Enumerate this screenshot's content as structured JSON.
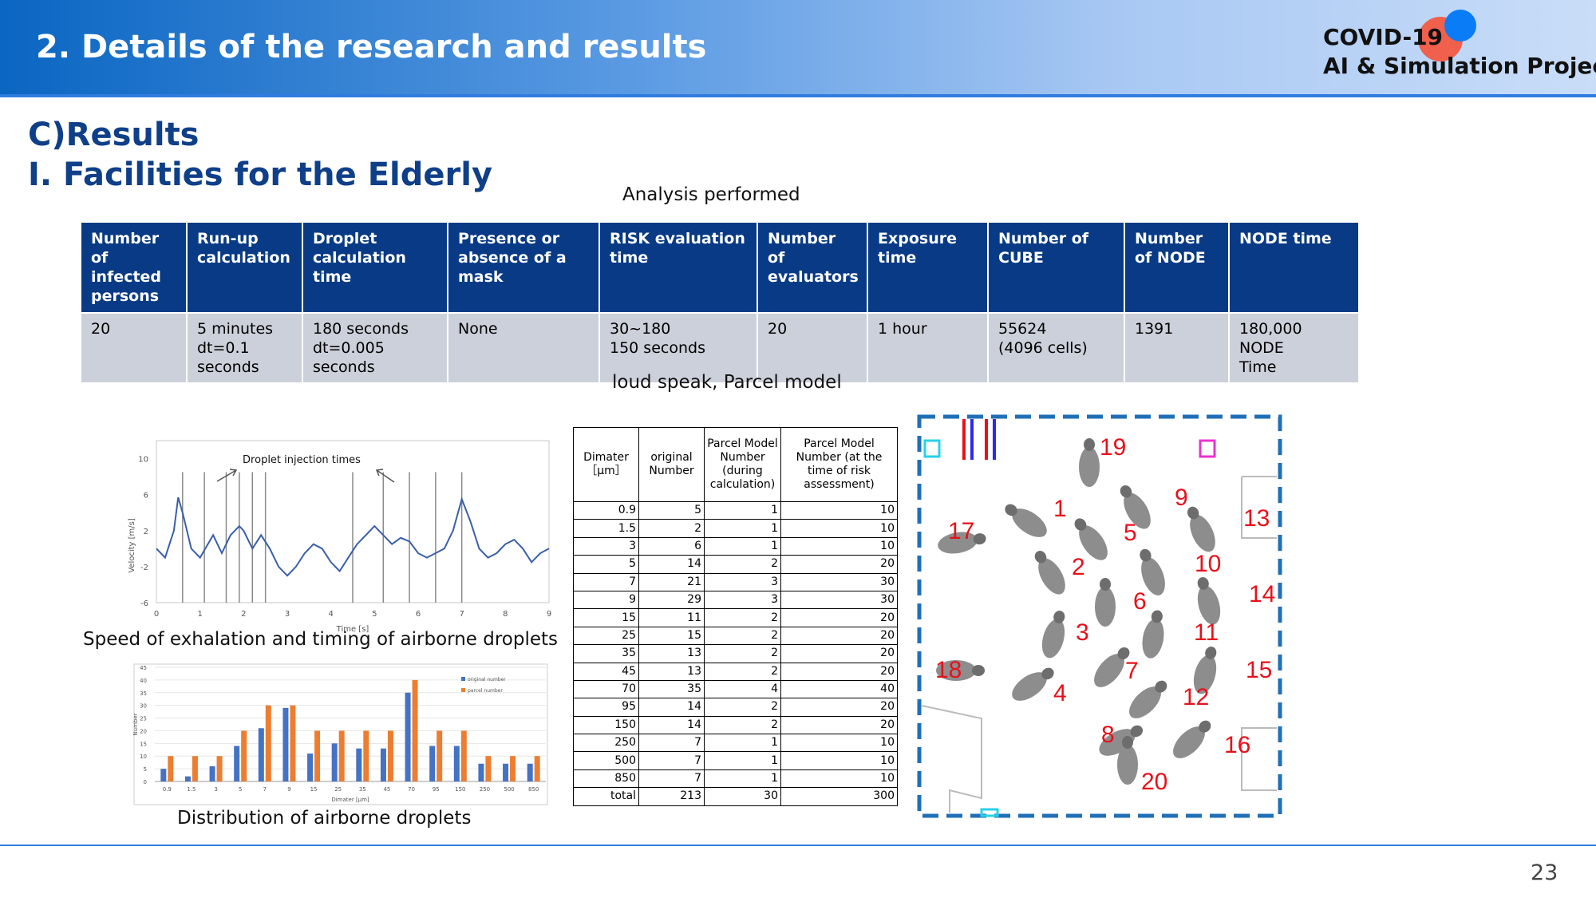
{
  "header": {
    "title": "2. Details of the research and results",
    "logo_line1": "COVID-19",
    "logo_line2": "AI & Simulation Project"
  },
  "section": {
    "line1": "C)Results",
    "line2": "I. Facilities for the Elderly"
  },
  "analysis_caption": "Analysis performed",
  "analysis_table": {
    "headers": [
      "Number of infected persons",
      "Run-up calculation",
      "Droplet calculation time",
      "Presence or absence of a mask",
      "RISK evaluation time",
      "Number of evaluators",
      "Exposure time",
      "Number of CUBE",
      "Number of NODE",
      "NODE time"
    ],
    "row": [
      [
        "20"
      ],
      [
        "5 minutes",
        "dt=0.1",
        "seconds"
      ],
      [
        "180 seconds",
        "dt=0.005",
        "seconds"
      ],
      [
        "None"
      ],
      [
        "30~180",
        "150 seconds"
      ],
      [
        "20"
      ],
      [
        "1 hour"
      ],
      [
        "55624",
        "(4096 cells)"
      ],
      [
        "1391"
      ],
      [
        "180,000",
        "NODE",
        "Time"
      ]
    ]
  },
  "model_caption": "loud speak, Parcel model",
  "velocity_chart": {
    "annotation": "Droplet injection times",
    "caption": "Speed of exhalation and timing of airborne droplets",
    "chart_data": {
      "type": "line",
      "xlabel": "Time [s]",
      "ylabel": "Velocity [m/s]",
      "xlim": [
        0,
        9
      ],
      "ylim": [
        -6,
        12
      ],
      "xticks": [
        "0",
        "1",
        "2",
        "3",
        "4",
        "5",
        "6",
        "7",
        "8",
        "9"
      ],
      "yticks": [
        "10",
        "6",
        "2",
        "-2",
        "-6"
      ],
      "x": [
        0,
        0.2,
        0.4,
        0.5,
        0.6,
        0.8,
        1.0,
        1.3,
        1.5,
        1.7,
        1.9,
        2.0,
        2.2,
        2.4,
        2.6,
        2.8,
        3.0,
        3.2,
        3.4,
        3.6,
        3.8,
        4.0,
        4.2,
        4.4,
        4.6,
        4.8,
        5.0,
        5.2,
        5.4,
        5.6,
        5.8,
        6.0,
        6.2,
        6.4,
        6.6,
        6.8,
        7.0,
        7.2,
        7.4,
        7.6,
        7.8,
        8.0,
        8.2,
        8.4,
        8.6,
        8.8,
        9.0
      ],
      "y": [
        0,
        -1,
        2,
        5.7,
        4,
        0,
        -1,
        1.5,
        -0.5,
        1.5,
        2.5,
        2,
        0,
        1.5,
        0,
        -2,
        -3,
        -2,
        -0.5,
        0.5,
        0,
        -1.5,
        -2.5,
        -1,
        0.5,
        1.5,
        2.5,
        1.5,
        0.5,
        1.2,
        0.8,
        -0.5,
        -1,
        -0.5,
        0,
        2,
        5.5,
        3,
        0,
        -1,
        -0.5,
        0.5,
        1,
        0,
        -1.5,
        -0.5,
        0
      ],
      "injection_times": [
        0.6,
        1.1,
        1.6,
        1.9,
        2.2,
        2.5,
        4.5,
        5.2,
        5.8,
        6.4,
        7.0
      ]
    }
  },
  "distribution_chart": {
    "caption": "Distribution of airborne droplets",
    "chart_data": {
      "type": "bar",
      "xlabel": "Dimater [μm]",
      "ylabel": "Number",
      "ylim": [
        0,
        45
      ],
      "yticks": [
        "45",
        "40",
        "35",
        "30",
        "25",
        "20",
        "15",
        "10",
        "5",
        "0"
      ],
      "categories": [
        "0.9",
        "1.5",
        "3",
        "5",
        "7",
        "9",
        "15",
        "25",
        "35",
        "45",
        "70",
        "95",
        "150",
        "250",
        "500",
        "850"
      ],
      "series": [
        {
          "name": "original number",
          "color": "#4472c4",
          "values": [
            5,
            2,
            6,
            14,
            21,
            29,
            11,
            15,
            13,
            13,
            35,
            14,
            14,
            7,
            7,
            7
          ]
        },
        {
          "name": "parcel number",
          "color": "#ed7d31",
          "values": [
            10,
            10,
            10,
            20,
            30,
            30,
            20,
            20,
            20,
            20,
            40,
            20,
            20,
            10,
            10,
            10
          ]
        }
      ]
    }
  },
  "droplet_table": {
    "headers": [
      "Dimater ［μm］",
      "original Number",
      "Parcel Model Number (during calculation)",
      "Parcel Model Number (at the time of risk assessment)"
    ],
    "rows": [
      [
        "0.9",
        "5",
        "1",
        "10"
      ],
      [
        "1.5",
        "2",
        "1",
        "10"
      ],
      [
        "3",
        "6",
        "1",
        "10"
      ],
      [
        "5",
        "14",
        "2",
        "20"
      ],
      [
        "7",
        "21",
        "3",
        "30"
      ],
      [
        "9",
        "29",
        "3",
        "30"
      ],
      [
        "15",
        "11",
        "2",
        "20"
      ],
      [
        "25",
        "15",
        "2",
        "20"
      ],
      [
        "35",
        "13",
        "2",
        "20"
      ],
      [
        "45",
        "13",
        "2",
        "20"
      ],
      [
        "70",
        "35",
        "4",
        "40"
      ],
      [
        "95",
        "14",
        "2",
        "20"
      ],
      [
        "150",
        "14",
        "2",
        "20"
      ],
      [
        "250",
        "7",
        "1",
        "10"
      ],
      [
        "500",
        "7",
        "1",
        "10"
      ],
      [
        "850",
        "7",
        "1",
        "10"
      ],
      [
        "total",
        "213",
        "30",
        "300"
      ]
    ]
  },
  "room_layout": {
    "colors": {
      "boundary": "#1f6fb8",
      "label": "#e8101a",
      "marker_cyan": "#29d1e8",
      "marker_magenta": "#e833d0"
    },
    "labels": [
      "1",
      "2",
      "3",
      "4",
      "5",
      "6",
      "7",
      "8",
      "9",
      "10",
      "11",
      "12",
      "13",
      "14",
      "15",
      "16",
      "17",
      "18",
      "19",
      "20"
    ]
  },
  "page_number": "23"
}
